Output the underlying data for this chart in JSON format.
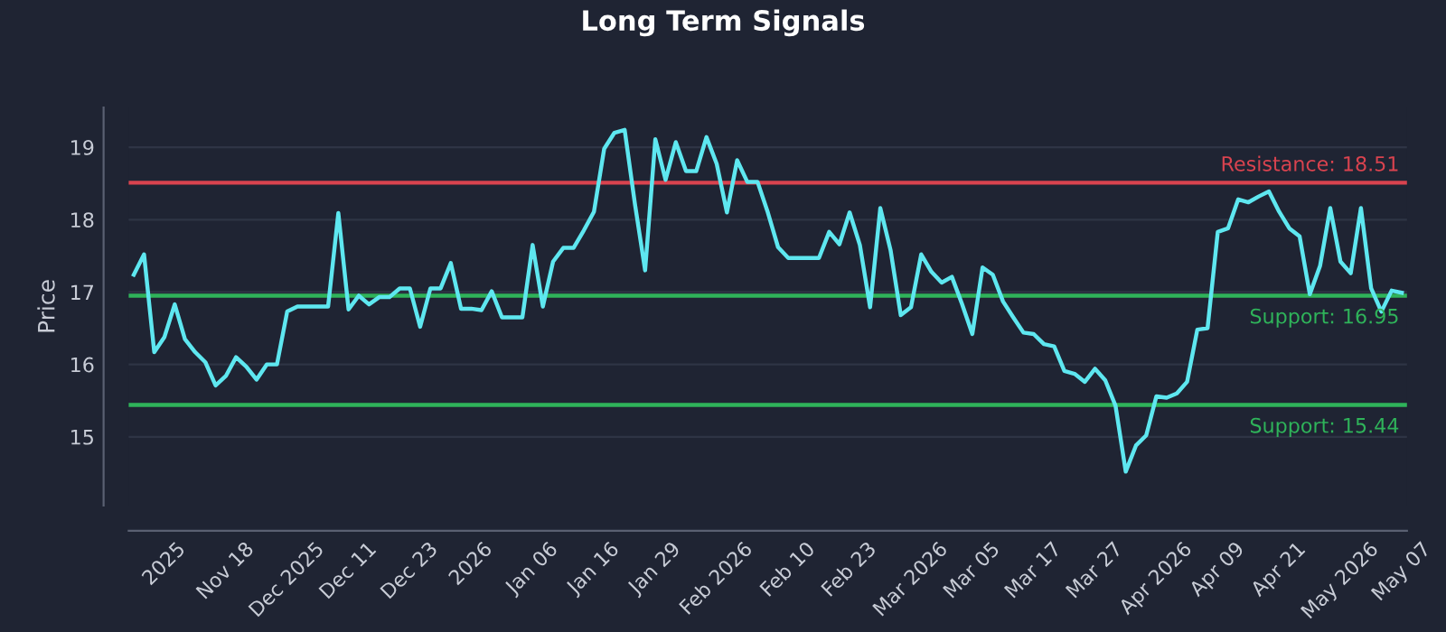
{
  "chart_data": {
    "type": "line",
    "title": "Long Term Signals",
    "ylabel": "Price",
    "categories": [
      null,
      null,
      null,
      "2025",
      null,
      null,
      null,
      null,
      null,
      "Nov 18",
      null,
      null,
      null,
      null,
      null,
      "Dec 2025",
      null,
      null,
      null,
      null,
      null,
      "Dec 11",
      null,
      null,
      null,
      null,
      null,
      "Dec 23",
      null,
      null,
      null,
      null,
      null,
      "2026",
      null,
      null,
      null,
      null,
      null,
      "Jan 06",
      null,
      null,
      null,
      null,
      null,
      "Jan 16",
      null,
      null,
      null,
      null,
      null,
      "Jan 29",
      null,
      null,
      null,
      null,
      null,
      "Feb 2026",
      null,
      null,
      null,
      null,
      null,
      null,
      "Feb 10",
      null,
      null,
      null,
      null,
      null,
      "Feb 23",
      null,
      null,
      null,
      null,
      null,
      "Mar 2026",
      null,
      null,
      null,
      null,
      null,
      "Mar 05",
      null,
      null,
      null,
      null,
      null,
      "Mar 17",
      null,
      null,
      null,
      null,
      null,
      "Mar 27",
      null,
      null,
      null,
      null,
      null,
      "Apr 2026",
      null,
      null,
      null,
      null,
      null,
      "Apr 09",
      null,
      null,
      null,
      null,
      null,
      "Apr 21",
      null,
      null,
      null,
      null,
      null,
      "May 2026",
      null,
      null,
      null,
      null,
      null,
      "May 07"
    ],
    "series": [
      {
        "color": "#5ee7f0",
        "values": [
          17.24,
          17.52,
          16.17,
          16.38,
          16.83,
          16.35,
          16.17,
          16.03,
          15.71,
          15.84,
          16.1,
          15.97,
          15.79,
          16.0,
          16.0,
          16.73,
          16.8,
          16.8,
          16.8,
          16.8,
          18.09,
          16.76,
          16.95,
          16.83,
          16.93,
          16.93,
          17.05,
          17.05,
          16.52,
          17.05,
          17.05,
          17.4,
          16.77,
          16.77,
          16.75,
          17.01,
          16.65,
          16.65,
          16.65,
          17.65,
          16.8,
          17.42,
          17.61,
          17.61,
          17.85,
          18.11,
          18.98,
          19.2,
          19.24,
          18.22,
          17.3,
          19.11,
          18.55,
          19.07,
          18.67,
          18.67,
          19.14,
          18.77,
          18.1,
          18.82,
          18.52,
          18.52,
          18.1,
          17.62,
          17.47,
          17.47,
          17.47,
          17.47,
          17.83,
          17.66,
          18.1,
          17.65,
          16.79,
          18.16,
          17.58,
          16.68,
          16.79,
          17.52,
          17.28,
          17.13,
          17.21,
          16.83,
          16.42,
          17.34,
          17.24,
          16.87,
          16.65,
          16.44,
          16.42,
          16.28,
          16.25,
          15.91,
          15.87,
          15.76,
          15.94,
          15.78,
          15.43,
          14.52,
          14.88,
          15.02,
          15.56,
          15.54,
          15.6,
          15.76,
          16.48,
          16.5,
          17.83,
          17.88,
          18.28,
          18.24,
          18.32,
          18.39,
          18.11,
          17.88,
          17.77,
          16.97,
          17.36,
          18.16,
          17.42,
          17.26,
          18.16,
          17.05,
          16.73,
          17.02,
          16.99
        ]
      }
    ],
    "ylim": [
      14.05,
      19.55
    ],
    "yticks": [
      15,
      16,
      17,
      18,
      19
    ],
    "grid": "y",
    "ref_lines": [
      {
        "axis": "y",
        "value": 18.51,
        "label": "Resistance: 18.51",
        "color": "#d9434f"
      },
      {
        "axis": "y",
        "value": 16.95,
        "label": "Support: 16.95",
        "color": "#2fb35a"
      },
      {
        "axis": "y",
        "value": 15.44,
        "label": "Support: 15.44",
        "color": "#2fb35a"
      }
    ]
  }
}
